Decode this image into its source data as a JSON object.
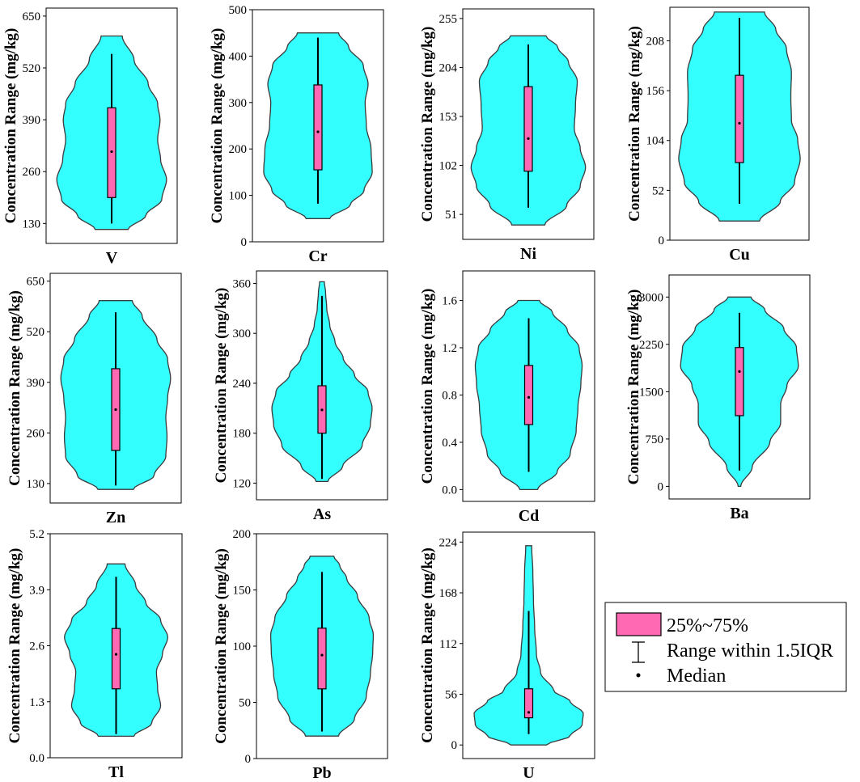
{
  "chart_data": [
    {
      "type": "violin",
      "xlabel": "V",
      "ylabel": "Concentration Range (mg/kg)",
      "ylim": [
        80,
        670
      ],
      "yticks": [
        "130",
        "260",
        "390",
        "520",
        "650"
      ],
      "min": 115,
      "max": 600,
      "q1": 195,
      "q3": 420,
      "median": 310,
      "whisker_low": 130,
      "whisker_high": 555,
      "shape": [
        [
          115,
          0.28
        ],
        [
          150,
          0.58
        ],
        [
          190,
          0.85
        ],
        [
          240,
          0.93
        ],
        [
          290,
          0.83
        ],
        [
          340,
          0.78
        ],
        [
          390,
          0.82
        ],
        [
          430,
          0.78
        ],
        [
          480,
          0.62
        ],
        [
          540,
          0.38
        ],
        [
          600,
          0.18
        ]
      ]
    },
    {
      "type": "violin",
      "xlabel": "Cr",
      "ylabel": "Concentration Range (mg/kg)",
      "ylim": [
        0,
        500
      ],
      "yticks": [
        "0",
        "100",
        "200",
        "300",
        "400",
        "500"
      ],
      "min": 50,
      "max": 450,
      "q1": 155,
      "q3": 338,
      "median": 237,
      "whisker_low": 82,
      "whisker_high": 440,
      "shape": [
        [
          50,
          0.2
        ],
        [
          80,
          0.55
        ],
        [
          110,
          0.78
        ],
        [
          150,
          0.92
        ],
        [
          200,
          0.9
        ],
        [
          250,
          0.82
        ],
        [
          300,
          0.8
        ],
        [
          340,
          0.85
        ],
        [
          380,
          0.77
        ],
        [
          420,
          0.52
        ],
        [
          450,
          0.35
        ]
      ]
    },
    {
      "type": "violin",
      "xlabel": "Ni",
      "ylabel": "Concentration Range (mg/kg)",
      "ylim": [
        25,
        265
      ],
      "yticks": [
        "51",
        "102",
        "153",
        "204",
        "255"
      ],
      "min": 40,
      "max": 237,
      "q1": 96,
      "q3": 184,
      "median": 130,
      "whisker_low": 58,
      "whisker_high": 228,
      "shape": [
        [
          40,
          0.28
        ],
        [
          60,
          0.65
        ],
        [
          80,
          0.88
        ],
        [
          100,
          0.97
        ],
        [
          120,
          0.88
        ],
        [
          140,
          0.78
        ],
        [
          165,
          0.8
        ],
        [
          190,
          0.83
        ],
        [
          210,
          0.68
        ],
        [
          225,
          0.5
        ],
        [
          237,
          0.3
        ]
      ]
    },
    {
      "type": "violin",
      "xlabel": "Cu",
      "ylabel": "Concentration Range (mg/kg)",
      "ylim": [
        0,
        243
      ],
      "yticks": [
        "0",
        "52",
        "104",
        "156",
        "208"
      ],
      "min": 20,
      "max": 238,
      "q1": 81,
      "q3": 172,
      "median": 122,
      "whisker_low": 38,
      "whisker_high": 232,
      "shape": [
        [
          20,
          0.32
        ],
        [
          40,
          0.65
        ],
        [
          60,
          0.88
        ],
        [
          85,
          0.97
        ],
        [
          105,
          0.93
        ],
        [
          125,
          0.83
        ],
        [
          150,
          0.82
        ],
        [
          175,
          0.83
        ],
        [
          200,
          0.75
        ],
        [
          220,
          0.58
        ],
        [
          238,
          0.4
        ]
      ]
    },
    {
      "type": "violin",
      "xlabel": "Zn",
      "ylabel": "Concentration Range (mg/kg)",
      "ylim": [
        80,
        670
      ],
      "yticks": [
        "130",
        "260",
        "390",
        "520",
        "650"
      ],
      "min": 115,
      "max": 600,
      "q1": 215,
      "q3": 425,
      "median": 320,
      "whisker_low": 125,
      "whisker_high": 570,
      "shape": [
        [
          115,
          0.3
        ],
        [
          150,
          0.65
        ],
        [
          200,
          0.85
        ],
        [
          250,
          0.87
        ],
        [
          300,
          0.85
        ],
        [
          350,
          0.88
        ],
        [
          400,
          0.93
        ],
        [
          450,
          0.88
        ],
        [
          500,
          0.7
        ],
        [
          560,
          0.45
        ],
        [
          600,
          0.28
        ]
      ]
    },
    {
      "type": "violin",
      "xlabel": "As",
      "ylabel": "Concentration Range (mg/kg)",
      "ylim": [
        100,
        375
      ],
      "yticks": [
        "120",
        "180",
        "240",
        "300",
        "360"
      ],
      "min": 122,
      "max": 362,
      "q1": 180,
      "q3": 237,
      "median": 208,
      "whisker_low": 125,
      "whisker_high": 345,
      "shape": [
        [
          122,
          0.1
        ],
        [
          140,
          0.35
        ],
        [
          165,
          0.68
        ],
        [
          190,
          0.82
        ],
        [
          210,
          0.85
        ],
        [
          230,
          0.78
        ],
        [
          250,
          0.55
        ],
        [
          270,
          0.36
        ],
        [
          290,
          0.22
        ],
        [
          310,
          0.13
        ],
        [
          330,
          0.08
        ],
        [
          350,
          0.06
        ],
        [
          362,
          0.04
        ]
      ]
    },
    {
      "type": "violin",
      "xlabel": "Cd",
      "ylabel": "Concentration Range (mg/kg)",
      "ylim": [
        -0.1,
        1.85
      ],
      "yticks": [
        "0.0",
        "0.4",
        "0.8",
        "1.2",
        "1.6"
      ],
      "min": 0.0,
      "max": 1.6,
      "q1": 0.55,
      "q3": 1.05,
      "median": 0.78,
      "whisker_low": 0.15,
      "whisker_high": 1.45,
      "shape": [
        [
          0.0,
          0.15
        ],
        [
          0.15,
          0.48
        ],
        [
          0.3,
          0.7
        ],
        [
          0.5,
          0.8
        ],
        [
          0.7,
          0.83
        ],
        [
          0.9,
          0.88
        ],
        [
          1.05,
          0.9
        ],
        [
          1.2,
          0.85
        ],
        [
          1.35,
          0.65
        ],
        [
          1.5,
          0.4
        ],
        [
          1.6,
          0.18
        ]
      ]
    },
    {
      "type": "violin",
      "xlabel": "Ba",
      "ylabel": "Concentration Range (mg/kg)",
      "ylim": [
        -200,
        3350
      ],
      "yticks": [
        "0",
        "750",
        "1500",
        "2250",
        "3000"
      ],
      "min": 0,
      "max": 3000,
      "q1": 1120,
      "q3": 2200,
      "median": 1820,
      "whisker_low": 250,
      "whisker_high": 2750,
      "shape": [
        [
          0,
          0.02
        ],
        [
          300,
          0.2
        ],
        [
          700,
          0.48
        ],
        [
          1000,
          0.65
        ],
        [
          1300,
          0.65
        ],
        [
          1600,
          0.75
        ],
        [
          1900,
          0.93
        ],
        [
          2200,
          0.9
        ],
        [
          2500,
          0.7
        ],
        [
          2800,
          0.4
        ],
        [
          3000,
          0.18
        ]
      ]
    },
    {
      "type": "violin",
      "xlabel": "Tl",
      "ylabel": "Concentration Range (mg/kg)",
      "ylim": [
        0,
        5.2
      ],
      "yticks": [
        "0.0",
        "1.3",
        "2.6",
        "3.9",
        "5.2"
      ],
      "min": 0.5,
      "max": 4.5,
      "q1": 1.6,
      "q3": 3.0,
      "median": 2.4,
      "whisker_low": 0.55,
      "whisker_high": 4.2,
      "shape": [
        [
          0.5,
          0.3
        ],
        [
          0.8,
          0.6
        ],
        [
          1.2,
          0.75
        ],
        [
          1.6,
          0.7
        ],
        [
          2.0,
          0.68
        ],
        [
          2.4,
          0.78
        ],
        [
          2.8,
          0.87
        ],
        [
          3.2,
          0.75
        ],
        [
          3.6,
          0.5
        ],
        [
          4.0,
          0.33
        ],
        [
          4.5,
          0.15
        ]
      ]
    },
    {
      "type": "violin",
      "xlabel": "Pb",
      "ylabel": "Concentration Range (mg/kg)",
      "ylim": [
        0,
        200
      ],
      "yticks": [
        "0",
        "50",
        "100",
        "150",
        "200"
      ],
      "min": 20,
      "max": 180,
      "q1": 62,
      "q3": 116,
      "median": 92,
      "whisker_low": 24,
      "whisker_high": 166,
      "shape": [
        [
          20,
          0.28
        ],
        [
          35,
          0.55
        ],
        [
          55,
          0.75
        ],
        [
          75,
          0.82
        ],
        [
          95,
          0.86
        ],
        [
          110,
          0.87
        ],
        [
          125,
          0.8
        ],
        [
          145,
          0.6
        ],
        [
          160,
          0.42
        ],
        [
          172,
          0.3
        ],
        [
          180,
          0.2
        ]
      ]
    },
    {
      "type": "violin",
      "xlabel": "U",
      "ylabel": "Concentration Range (mg/kg)",
      "ylim": [
        -15,
        235
      ],
      "yticks": [
        "0",
        "56",
        "112",
        "168",
        "224"
      ],
      "min": 0,
      "max": 220,
      "q1": 30,
      "q3": 62,
      "median": 36,
      "whisker_low": 12,
      "whisker_high": 148,
      "shape": [
        [
          0,
          0.3
        ],
        [
          10,
          0.7
        ],
        [
          22,
          0.9
        ],
        [
          35,
          0.92
        ],
        [
          48,
          0.7
        ],
        [
          60,
          0.42
        ],
        [
          80,
          0.2
        ],
        [
          100,
          0.13
        ],
        [
          130,
          0.1
        ],
        [
          160,
          0.08
        ],
        [
          190,
          0.07
        ],
        [
          220,
          0.05
        ]
      ]
    }
  ],
  "legend": {
    "iqr_label": "25%~75%",
    "range_label": "Range within 1.5IQR",
    "median_label": "Median"
  },
  "colors": {
    "violin_fill": "#33ffff",
    "box_fill": "#ff69b4"
  }
}
